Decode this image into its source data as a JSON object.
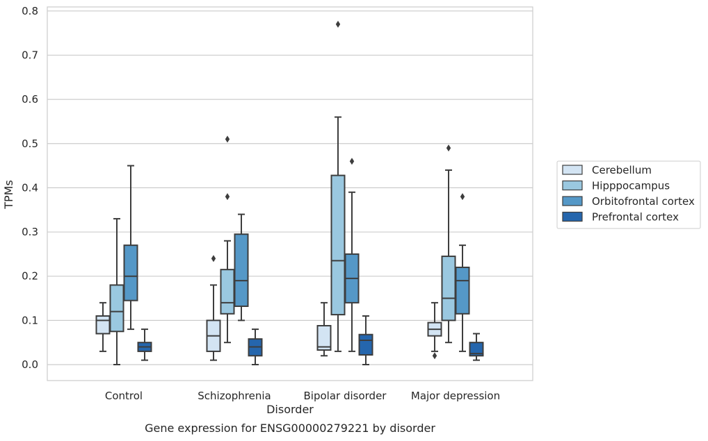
{
  "chart_data": {
    "type": "box",
    "title": "Gene expression for ENSG00000279221 by disorder",
    "xlabel": "Disorder",
    "ylabel": "TPMs",
    "ylim": [
      -0.04,
      0.81
    ],
    "yticks": [
      "0.0",
      "0.1",
      "0.2",
      "0.3",
      "0.4",
      "0.5",
      "0.6",
      "0.7",
      "0.8"
    ],
    "grid": "horizontal",
    "legend_position": "right",
    "categories": [
      "Control",
      "Schizophrenia",
      "Bipolar disorder",
      "Major depression"
    ],
    "series": [
      {
        "name": "Cerebellum",
        "color": "#d3e4f3",
        "boxes": [
          {
            "whisker_low": 0.03,
            "q1": 0.07,
            "median": 0.1,
            "q3": 0.11,
            "whisker_high": 0.14,
            "outliers": []
          },
          {
            "whisker_low": 0.01,
            "q1": 0.03,
            "median": 0.065,
            "q3": 0.1,
            "whisker_high": 0.18,
            "outliers": [
              0.24
            ]
          },
          {
            "whisker_low": 0.02,
            "q1": 0.033,
            "median": 0.04,
            "q3": 0.088,
            "whisker_high": 0.14,
            "outliers": []
          },
          {
            "whisker_low": 0.03,
            "q1": 0.065,
            "median": 0.08,
            "q3": 0.095,
            "whisker_high": 0.14,
            "outliers": [
              0.02
            ]
          }
        ]
      },
      {
        "name": "Hipppocampus",
        "color": "#9ac8e0",
        "boxes": [
          {
            "whisker_low": 0.0,
            "q1": 0.075,
            "median": 0.12,
            "q3": 0.18,
            "whisker_high": 0.33,
            "outliers": []
          },
          {
            "whisker_low": 0.05,
            "q1": 0.115,
            "median": 0.14,
            "q3": 0.215,
            "whisker_high": 0.28,
            "outliers": [
              0.38,
              0.51
            ]
          },
          {
            "whisker_low": 0.03,
            "q1": 0.113,
            "median": 0.235,
            "q3": 0.428,
            "whisker_high": 0.56,
            "outliers": [
              0.77
            ]
          },
          {
            "whisker_low": 0.05,
            "q1": 0.1,
            "median": 0.15,
            "q3": 0.245,
            "whisker_high": 0.44,
            "outliers": [
              0.49
            ]
          }
        ]
      },
      {
        "name": "Orbitofrontal cortex",
        "color": "#5598c7",
        "boxes": [
          {
            "whisker_low": 0.08,
            "q1": 0.145,
            "median": 0.2,
            "q3": 0.27,
            "whisker_high": 0.45,
            "outliers": []
          },
          {
            "whisker_low": 0.1,
            "q1": 0.132,
            "median": 0.19,
            "q3": 0.295,
            "whisker_high": 0.34,
            "outliers": []
          },
          {
            "whisker_low": 0.03,
            "q1": 0.14,
            "median": 0.195,
            "q3": 0.25,
            "whisker_high": 0.39,
            "outliers": [
              0.46
            ]
          },
          {
            "whisker_low": 0.03,
            "q1": 0.115,
            "median": 0.19,
            "q3": 0.22,
            "whisker_high": 0.27,
            "outliers": [
              0.38
            ]
          }
        ]
      },
      {
        "name": "Prefrontal cortex",
        "color": "#2566ad",
        "boxes": [
          {
            "whisker_low": 0.01,
            "q1": 0.03,
            "median": 0.04,
            "q3": 0.05,
            "whisker_high": 0.08,
            "outliers": []
          },
          {
            "whisker_low": 0.0,
            "q1": 0.02,
            "median": 0.04,
            "q3": 0.058,
            "whisker_high": 0.08,
            "outliers": []
          },
          {
            "whisker_low": 0.0,
            "q1": 0.022,
            "median": 0.055,
            "q3": 0.068,
            "whisker_high": 0.11,
            "outliers": []
          },
          {
            "whisker_low": 0.01,
            "q1": 0.02,
            "median": 0.025,
            "q3": 0.05,
            "whisker_high": 0.07,
            "outliers": []
          }
        ]
      }
    ]
  }
}
